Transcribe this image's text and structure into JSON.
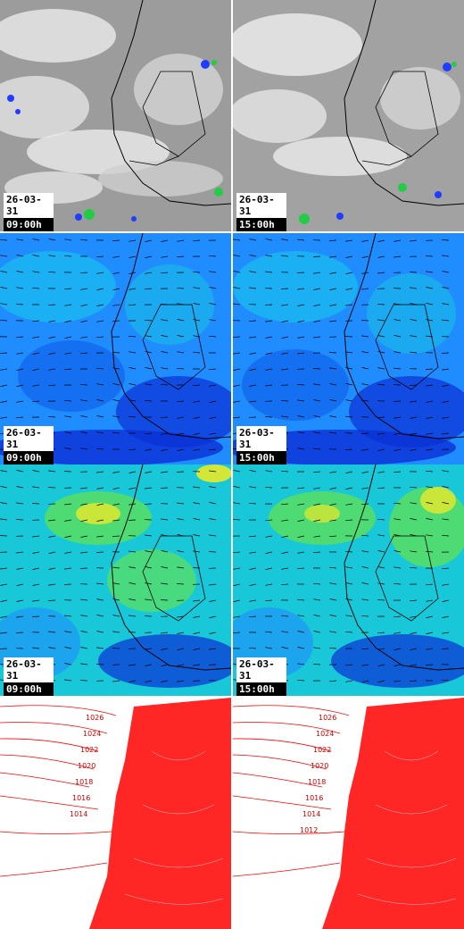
{
  "rows": [
    {
      "type": "satellite",
      "panels": [
        {
          "date": "26-03-31",
          "time": "09:00h"
        },
        {
          "date": "26-03-31",
          "time": "15:00h"
        }
      ]
    },
    {
      "type": "wind-low",
      "panels": [
        {
          "date": "26-03-31",
          "time": "09:00h"
        },
        {
          "date": "26-03-31",
          "time": "15:00h"
        }
      ]
    },
    {
      "type": "wind-high",
      "panels": [
        {
          "date": "26-03-31",
          "time": "09:00h"
        },
        {
          "date": "26-03-31",
          "time": "15:00h"
        }
      ]
    },
    {
      "type": "pressure",
      "panels": [
        {
          "isobar_labels": [
            "1026",
            "1024",
            "1022",
            "1020",
            "1018",
            "1016",
            "1014"
          ]
        },
        {
          "isobar_labels": [
            "1026",
            "1024",
            "1022",
            "1020",
            "1018",
            "1016",
            "1014",
            "1012"
          ]
        }
      ]
    }
  ],
  "colors": {
    "satellite_bg": "#9a9a9a",
    "cloud": "#e6e6e6",
    "precip_blue": "#1f3cff",
    "precip_green": "#22cc44",
    "wind_deep": "#0b2fd6",
    "wind_mid": "#1f8cff",
    "wind_cyan": "#18d4e8",
    "wind_green": "#5ee05a",
    "wind_yellow": "#e8ea2a",
    "isobar": "#ff0000",
    "coast": "#000000"
  }
}
